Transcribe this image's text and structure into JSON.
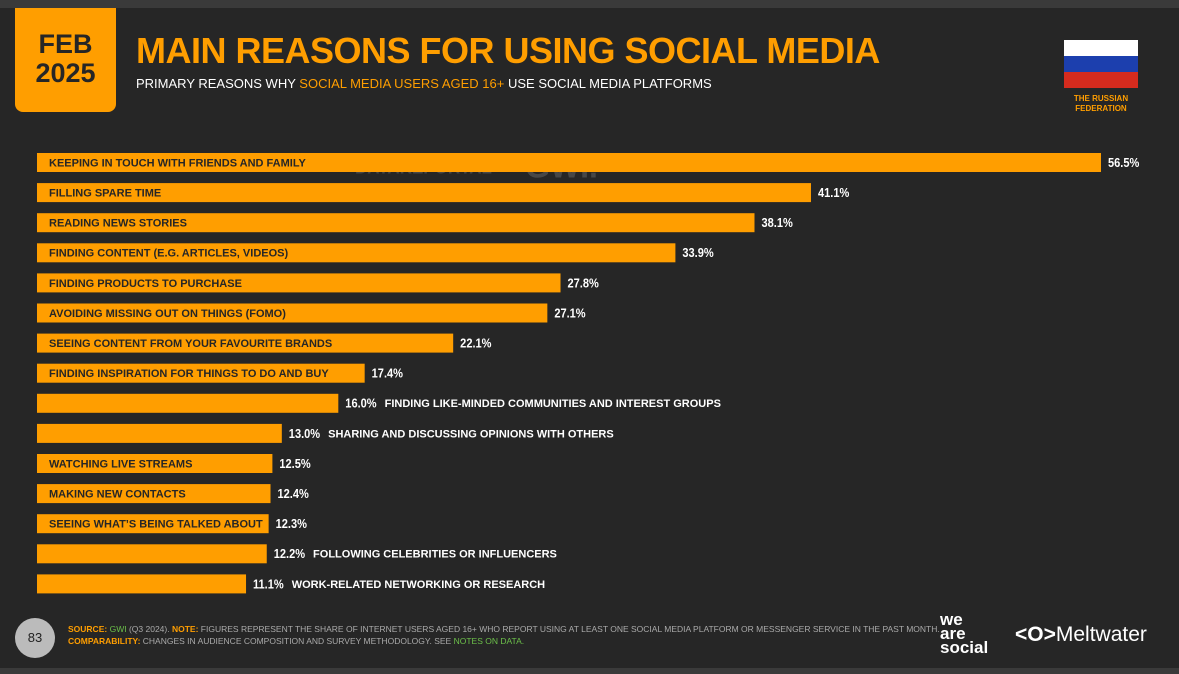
{
  "header": {
    "date_month": "FEB",
    "date_year": "2025",
    "title": "MAIN REASONS FOR USING SOCIAL MEDIA",
    "subtitle": [
      "PRIMARY REASONS WHY",
      "SOCIAL MEDIA USERS AGED 16+",
      "USE SOCIAL MEDIA PLATFORMS"
    ],
    "country": "THE RUSSIAN FEDERATION"
  },
  "watermark": [
    "DATAREPORTAL",
    "GWI."
  ],
  "chart_data": {
    "type": "bar",
    "orientation": "horizontal",
    "color": "#ff9e00",
    "categories": [
      "KEEPING IN TOUCH WITH FRIENDS AND FAMILY",
      "FILLING SPARE TIME",
      "READING NEWS STORIES",
      "FINDING CONTENT (E.G. ARTICLES, VIDEOS)",
      "FINDING PRODUCTS TO PURCHASE",
      "AVOIDING MISSING OUT ON THINGS (FOMO)",
      "SEEING CONTENT FROM YOUR FAVOURITE BRANDS",
      "FINDING INSPIRATION FOR THINGS TO DO AND BUY",
      "FINDING LIKE-MINDED COMMUNITIES AND INTEREST GROUPS",
      "SHARING AND DISCUSSING OPINIONS WITH OTHERS",
      "WATCHING LIVE STREAMS",
      "MAKING NEW CONTACTS",
      "SEEING WHAT’S BEING TALKED ABOUT",
      "FOLLOWING CELEBRITIES OR INFLUENCERS",
      "WORK-RELATED NETWORKING OR RESEARCH"
    ],
    "values": [
      56.5,
      41.1,
      38.1,
      33.9,
      27.8,
      27.1,
      22.1,
      17.4,
      16.0,
      13.0,
      12.5,
      12.4,
      12.3,
      12.2,
      11.1
    ],
    "value_labels": [
      "56.5%",
      "41.1%",
      "38.1%",
      "33.9%",
      "27.8%",
      "27.1%",
      "22.1%",
      "17.4%",
      "16.0%",
      "13.0%",
      "12.5%",
      "12.4%",
      "12.3%",
      "12.2%",
      "11.1%"
    ]
  },
  "footer": {
    "page": "83",
    "source_label": "SOURCE:",
    "source": "GWI",
    "source_rest": "(Q3 2024).",
    "note_label": "NOTE:",
    "note": "FIGURES REPRESENT THE SHARE OF INTERNET USERS AGED 16+ WHO REPORT USING AT LEAST ONE SOCIAL MEDIA PLATFORM OR MESSENGER SERVICE IN THE PAST MONTH.",
    "comparability_label": "COMPARABILITY:",
    "comparability": "CHANGES IN AUDIENCE COMPOSITION AND SURVEY METHODOLOGY. SEE",
    "notes_link": "NOTES ON DATA.",
    "logo1": [
      "we",
      "are",
      "social"
    ],
    "logo2": "Meltwater"
  }
}
